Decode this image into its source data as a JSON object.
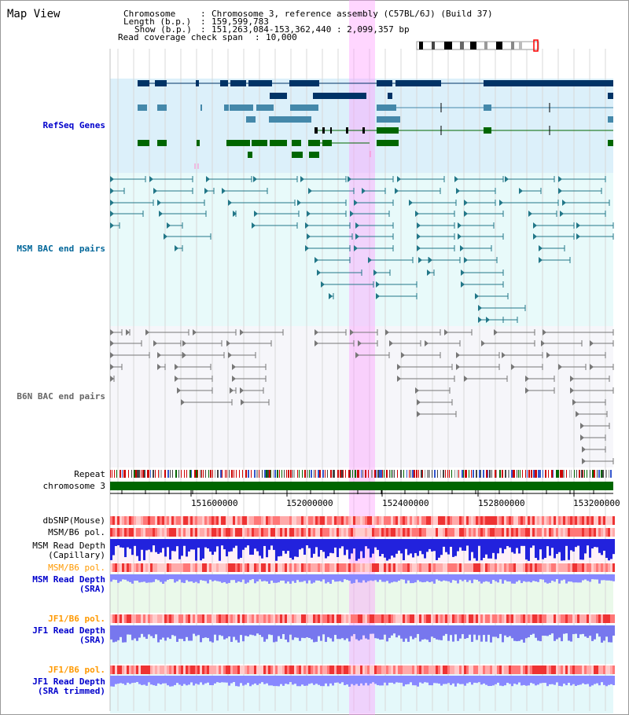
{
  "title": "Map View",
  "header": {
    "chromosome_key": "Chromosome",
    "chromosome_val": "Chromosome 3, reference assembly (C57BL/6J) (Build 37)",
    "length_key": "Length (b.p.)",
    "length_val": "159,599,783",
    "show_key": "Show (b.p.)",
    "show_val": "151,263,084-153,362,440 : 2,099,357 bp",
    "coverage_key": "Read coverage check span",
    "coverage_val": "10,000"
  },
  "tracks": {
    "refseq": "RefSeq Genes",
    "msm_bac": "MSM BAC end pairs",
    "b6n_bac": "B6N BAC end pairs",
    "repeat": "Repeat",
    "chromosome": "chromosome 3",
    "dbsnp": "dbSNP(Mouse)",
    "msm_b6_pol_1": "MSM/B6 pol.",
    "msm_read_depth_cap_1": "MSM Read Depth",
    "msm_read_depth_cap_2": "(Capillary)",
    "msm_b6_pol_2": "MSM/B6 pol.",
    "msm_read_depth_sra_1": "MSM Read Depth",
    "msm_read_depth_sra_2": "(SRA)",
    "jf1_b6_pol_1": "JF1/B6 pol.",
    "jf1_read_depth_sra_1": "JF1 Read Depth",
    "jf1_read_depth_sra_2": "(SRA)",
    "jf1_b6_pol_2": "JF1/B6 pol.",
    "jf1_read_depth_trim_1": "JF1 Read Depth",
    "jf1_read_depth_trim_2": "(SRA trimmed)"
  },
  "axis": {
    "ticks": [
      "151600000",
      "152000000",
      "152400000",
      "152800000",
      "153200000"
    ]
  },
  "colors": {
    "refseq_label": "#0000cc",
    "msm_label": "#006699",
    "b6n_label": "#666666",
    "orange_label": "#ff9900",
    "blue_label": "#0000cc",
    "chromosome_bar": "#006600",
    "highlight": "#ff99ff"
  }
}
